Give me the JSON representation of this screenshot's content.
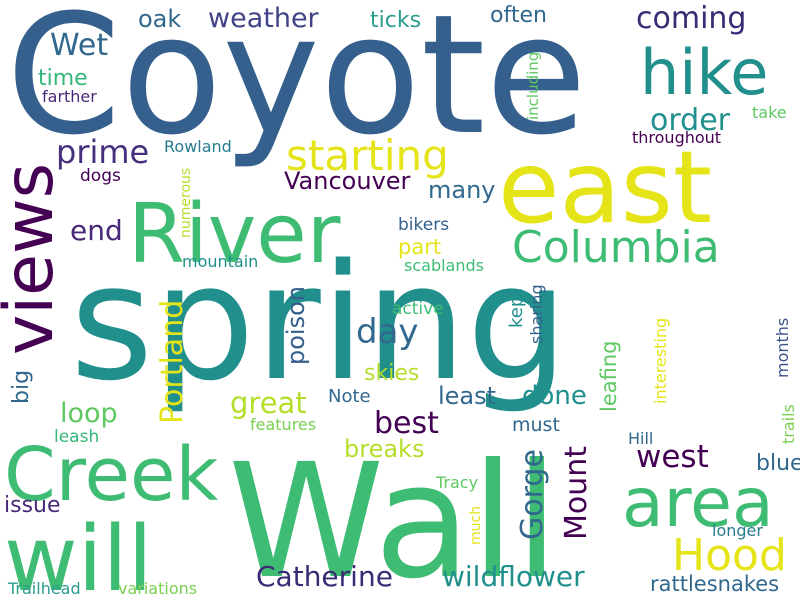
{
  "words": [
    {
      "id": "coyote",
      "text": "Coyote",
      "color": "#35608d"
    },
    {
      "id": "spring",
      "text": "spring",
      "color": "#21908d"
    },
    {
      "id": "wall",
      "text": "Wall",
      "color": "#3fbc73"
    },
    {
      "id": "east",
      "text": "east",
      "color": "#e5e419"
    },
    {
      "id": "river",
      "text": "River",
      "color": "#3fbc73"
    },
    {
      "id": "creek",
      "text": "Creek",
      "color": "#3fbc73"
    },
    {
      "id": "will",
      "text": "will",
      "color": "#3fbc73"
    },
    {
      "id": "views",
      "text": "views",
      "color": "#440154"
    },
    {
      "id": "area",
      "text": "area",
      "color": "#3fbc73"
    },
    {
      "id": "hike",
      "text": "hike",
      "color": "#21908d"
    },
    {
      "id": "columbia",
      "text": "Columbia",
      "color": "#3fbc73"
    },
    {
      "id": "hood",
      "text": "Hood",
      "color": "#e5e419"
    },
    {
      "id": "starting",
      "text": "starting",
      "color": "#e5e419"
    },
    {
      "id": "wet",
      "text": "Wet",
      "color": "#31688e"
    },
    {
      "id": "oak",
      "text": "oak",
      "color": "#31688e"
    },
    {
      "id": "weather",
      "text": "weather",
      "color": "#404387"
    },
    {
      "id": "ticks",
      "text": "ticks",
      "color": "#2a9d8f"
    },
    {
      "id": "often",
      "text": "often",
      "color": "#31688e"
    },
    {
      "id": "coming",
      "text": "coming",
      "color": "#3b2a74"
    },
    {
      "id": "time",
      "text": "time",
      "color": "#35b779"
    },
    {
      "id": "farther",
      "text": "farther",
      "color": "#482878"
    },
    {
      "id": "including",
      "text": "including",
      "color": "#5ec962"
    },
    {
      "id": "order",
      "text": "order",
      "color": "#21908d"
    },
    {
      "id": "take",
      "text": "take",
      "color": "#5ec962"
    },
    {
      "id": "throughout",
      "text": "throughout",
      "color": "#440154"
    },
    {
      "id": "prime",
      "text": "prime",
      "color": "#46307e"
    },
    {
      "id": "rowland",
      "text": "Rowland",
      "color": "#287c8e"
    },
    {
      "id": "dogs",
      "text": "dogs",
      "color": "#440154"
    },
    {
      "id": "vancouver",
      "text": "Vancouver",
      "color": "#440154"
    },
    {
      "id": "many",
      "text": "many",
      "color": "#31688e"
    },
    {
      "id": "end",
      "text": "end",
      "color": "#482878"
    },
    {
      "id": "numerous",
      "text": "numerous",
      "color": "#b5de2b"
    },
    {
      "id": "bikers",
      "text": "bikers",
      "color": "#35608d"
    },
    {
      "id": "part",
      "text": "part",
      "color": "#e5e419"
    },
    {
      "id": "mountain",
      "text": "mountain",
      "color": "#21908d"
    },
    {
      "id": "scablands",
      "text": "scablands",
      "color": "#3fbc73"
    },
    {
      "id": "portland",
      "text": "Portland",
      "color": "#e5e419"
    },
    {
      "id": "day",
      "text": "day",
      "color": "#31688e"
    },
    {
      "id": "kept",
      "text": "kept",
      "color": "#21908d"
    },
    {
      "id": "sharing",
      "text": "sharing",
      "color": "#35608d"
    },
    {
      "id": "leafing",
      "text": "leafing",
      "color": "#5ec962"
    },
    {
      "id": "active",
      "text": "active",
      "color": "#3fbc73"
    },
    {
      "id": "poison",
      "text": "poison",
      "color": "#35608d"
    },
    {
      "id": "months",
      "text": "months",
      "color": "#3b528b"
    },
    {
      "id": "big",
      "text": "big",
      "color": "#31688e"
    },
    {
      "id": "skies",
      "text": "skies",
      "color": "#b5de2b"
    },
    {
      "id": "loop",
      "text": "loop",
      "color": "#5ec962"
    },
    {
      "id": "note",
      "text": "Note",
      "color": "#31688e"
    },
    {
      "id": "least",
      "text": "least",
      "color": "#31688e"
    },
    {
      "id": "done",
      "text": "done",
      "color": "#21908d"
    },
    {
      "id": "interesting",
      "text": "interesting",
      "color": "#e5e419"
    },
    {
      "id": "trails",
      "text": "trails",
      "color": "#7ad151"
    },
    {
      "id": "great",
      "text": "great",
      "color": "#b5de2b"
    },
    {
      "id": "best",
      "text": "best",
      "color": "#440154"
    },
    {
      "id": "leash",
      "text": "leash",
      "color": "#35b779"
    },
    {
      "id": "features",
      "text": "features",
      "color": "#7ad151"
    },
    {
      "id": "must",
      "text": "must",
      "color": "#31688e"
    },
    {
      "id": "gorge",
      "text": "Gorge",
      "color": "#31688e"
    },
    {
      "id": "mount",
      "text": "Mount",
      "color": "#440154"
    },
    {
      "id": "west",
      "text": "west",
      "color": "#440154"
    },
    {
      "id": "breaks",
      "text": "breaks",
      "color": "#b5de2b"
    },
    {
      "id": "hill",
      "text": "Hill",
      "color": "#31688e"
    },
    {
      "id": "blue",
      "text": "blue",
      "color": "#31688e"
    },
    {
      "id": "issue",
      "text": "issue",
      "color": "#482878"
    },
    {
      "id": "tracy",
      "text": "Tracy",
      "color": "#5ec962"
    },
    {
      "id": "much",
      "text": "much",
      "color": "#e5e419"
    },
    {
      "id": "longer",
      "text": "longer",
      "color": "#287c8e"
    },
    {
      "id": "catherine",
      "text": "Catherine",
      "color": "#3b2a74"
    },
    {
      "id": "wildflower",
      "text": "wildflower",
      "color": "#21908d"
    },
    {
      "id": "trailhead",
      "text": "Trailhead",
      "color": "#2a9d8f"
    },
    {
      "id": "variations",
      "text": "variations",
      "color": "#7ad151"
    },
    {
      "id": "rattlesnakes",
      "text": "rattlesnakes",
      "color": "#31688e"
    }
  ]
}
